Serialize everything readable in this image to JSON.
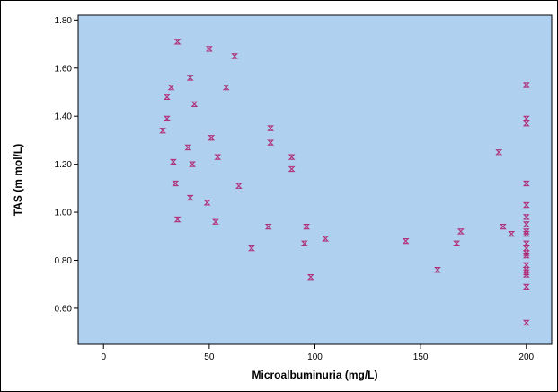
{
  "chart_data": {
    "type": "scatter",
    "title": "",
    "xlabel": "Microalbuminuria (mg/L)",
    "ylabel": "TAS (m mol/L)",
    "xlim": [
      -12,
      212
    ],
    "ylim": [
      0.45,
      1.82
    ],
    "xticks": [
      0,
      50,
      100,
      150,
      200
    ],
    "yticks": [
      0.6,
      0.8,
      1.0,
      1.2,
      1.4,
      1.6,
      1.8
    ],
    "ytick_labels": [
      "0.60",
      "0.80",
      "1.00",
      "1.20",
      "1.40",
      "1.60",
      "1.80"
    ],
    "xtick_labels": [
      "0",
      "50",
      "100",
      "150",
      "200"
    ],
    "grid": false,
    "plot_background": "#afd0ef",
    "marker_color": "#b0317a",
    "series": [
      {
        "points": [
          {
            "x": 28,
            "y": 1.34
          },
          {
            "x": 30,
            "y": 1.39
          },
          {
            "x": 30,
            "y": 1.48
          },
          {
            "x": 32,
            "y": 1.52
          },
          {
            "x": 33,
            "y": 1.21
          },
          {
            "x": 34,
            "y": 1.12
          },
          {
            "x": 35,
            "y": 1.71
          },
          {
            "x": 35,
            "y": 0.97
          },
          {
            "x": 40,
            "y": 1.27
          },
          {
            "x": 41,
            "y": 1.56
          },
          {
            "x": 41,
            "y": 1.06
          },
          {
            "x": 42,
            "y": 1.2
          },
          {
            "x": 43,
            "y": 1.45
          },
          {
            "x": 49,
            "y": 1.04
          },
          {
            "x": 50,
            "y": 1.68
          },
          {
            "x": 51,
            "y": 1.31
          },
          {
            "x": 53,
            "y": 0.96
          },
          {
            "x": 54,
            "y": 1.23
          },
          {
            "x": 58,
            "y": 1.52
          },
          {
            "x": 62,
            "y": 1.65
          },
          {
            "x": 64,
            "y": 1.11
          },
          {
            "x": 70,
            "y": 0.85
          },
          {
            "x": 78,
            "y": 0.94
          },
          {
            "x": 79,
            "y": 1.35
          },
          {
            "x": 79,
            "y": 1.29
          },
          {
            "x": 89,
            "y": 1.23
          },
          {
            "x": 89,
            "y": 1.18
          },
          {
            "x": 95,
            "y": 0.87
          },
          {
            "x": 96,
            "y": 0.94
          },
          {
            "x": 98,
            "y": 0.73
          },
          {
            "x": 105,
            "y": 0.89
          },
          {
            "x": 143,
            "y": 0.88
          },
          {
            "x": 158,
            "y": 0.76
          },
          {
            "x": 167,
            "y": 0.87
          },
          {
            "x": 169,
            "y": 0.92
          },
          {
            "x": 187,
            "y": 1.25
          },
          {
            "x": 189,
            "y": 0.94
          },
          {
            "x": 193,
            "y": 0.91
          },
          {
            "x": 200,
            "y": 1.53
          },
          {
            "x": 200,
            "y": 1.39
          },
          {
            "x": 200,
            "y": 1.37
          },
          {
            "x": 200,
            "y": 1.12
          },
          {
            "x": 200,
            "y": 1.03
          },
          {
            "x": 200,
            "y": 0.98
          },
          {
            "x": 200,
            "y": 0.95
          },
          {
            "x": 200,
            "y": 0.92
          },
          {
            "x": 200,
            "y": 0.91
          },
          {
            "x": 200,
            "y": 0.87
          },
          {
            "x": 200,
            "y": 0.85
          },
          {
            "x": 200,
            "y": 0.83
          },
          {
            "x": 200,
            "y": 0.82
          },
          {
            "x": 200,
            "y": 0.78
          },
          {
            "x": 200,
            "y": 0.76
          },
          {
            "x": 200,
            "y": 0.75
          },
          {
            "x": 200,
            "y": 0.74
          },
          {
            "x": 200,
            "y": 0.69
          },
          {
            "x": 200,
            "y": 0.54
          }
        ]
      }
    ]
  }
}
